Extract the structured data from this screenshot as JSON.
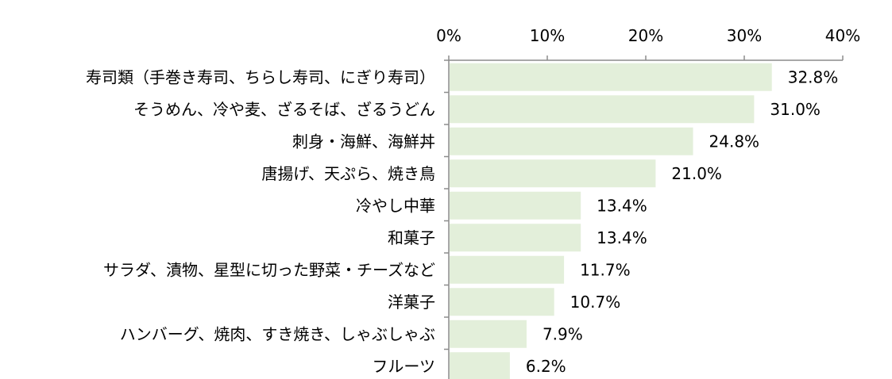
{
  "chart_data": {
    "type": "bar",
    "orientation": "horizontal",
    "categories": [
      "寿司類（手巻き寿司、ちらし寿司、にぎり寿司）",
      "そうめん、冷や麦、ざるそば、ざるうどん",
      "刺身・海鮮、海鮮丼",
      "唐揚げ、天ぷら、焼き鳥",
      "冷やし中華",
      "和菓子",
      "サラダ、漬物、星型に切った野菜・チーズなど",
      "洋菓子",
      "ハンバーグ、焼肉、すき焼き、しゃぶしゃぶ",
      "フルーツ"
    ],
    "values": [
      32.8,
      31.0,
      24.8,
      21.0,
      13.4,
      13.4,
      11.7,
      10.7,
      7.9,
      6.2
    ],
    "value_labels": [
      "32.8%",
      "31.0%",
      "24.8%",
      "21.0%",
      "13.4%",
      "13.4%",
      "11.7%",
      "10.7%",
      "7.9%",
      "6.2%"
    ],
    "xlim": [
      0,
      40
    ],
    "xticks": [
      0,
      10,
      20,
      30,
      40
    ],
    "xtick_labels": [
      "0%",
      "10%",
      "20%",
      "30%",
      "40%"
    ],
    "x_axis_position": "top",
    "grid": false,
    "legend": "none",
    "bar_color": "#e3efda",
    "axis_color": "#8c8c8c"
  }
}
